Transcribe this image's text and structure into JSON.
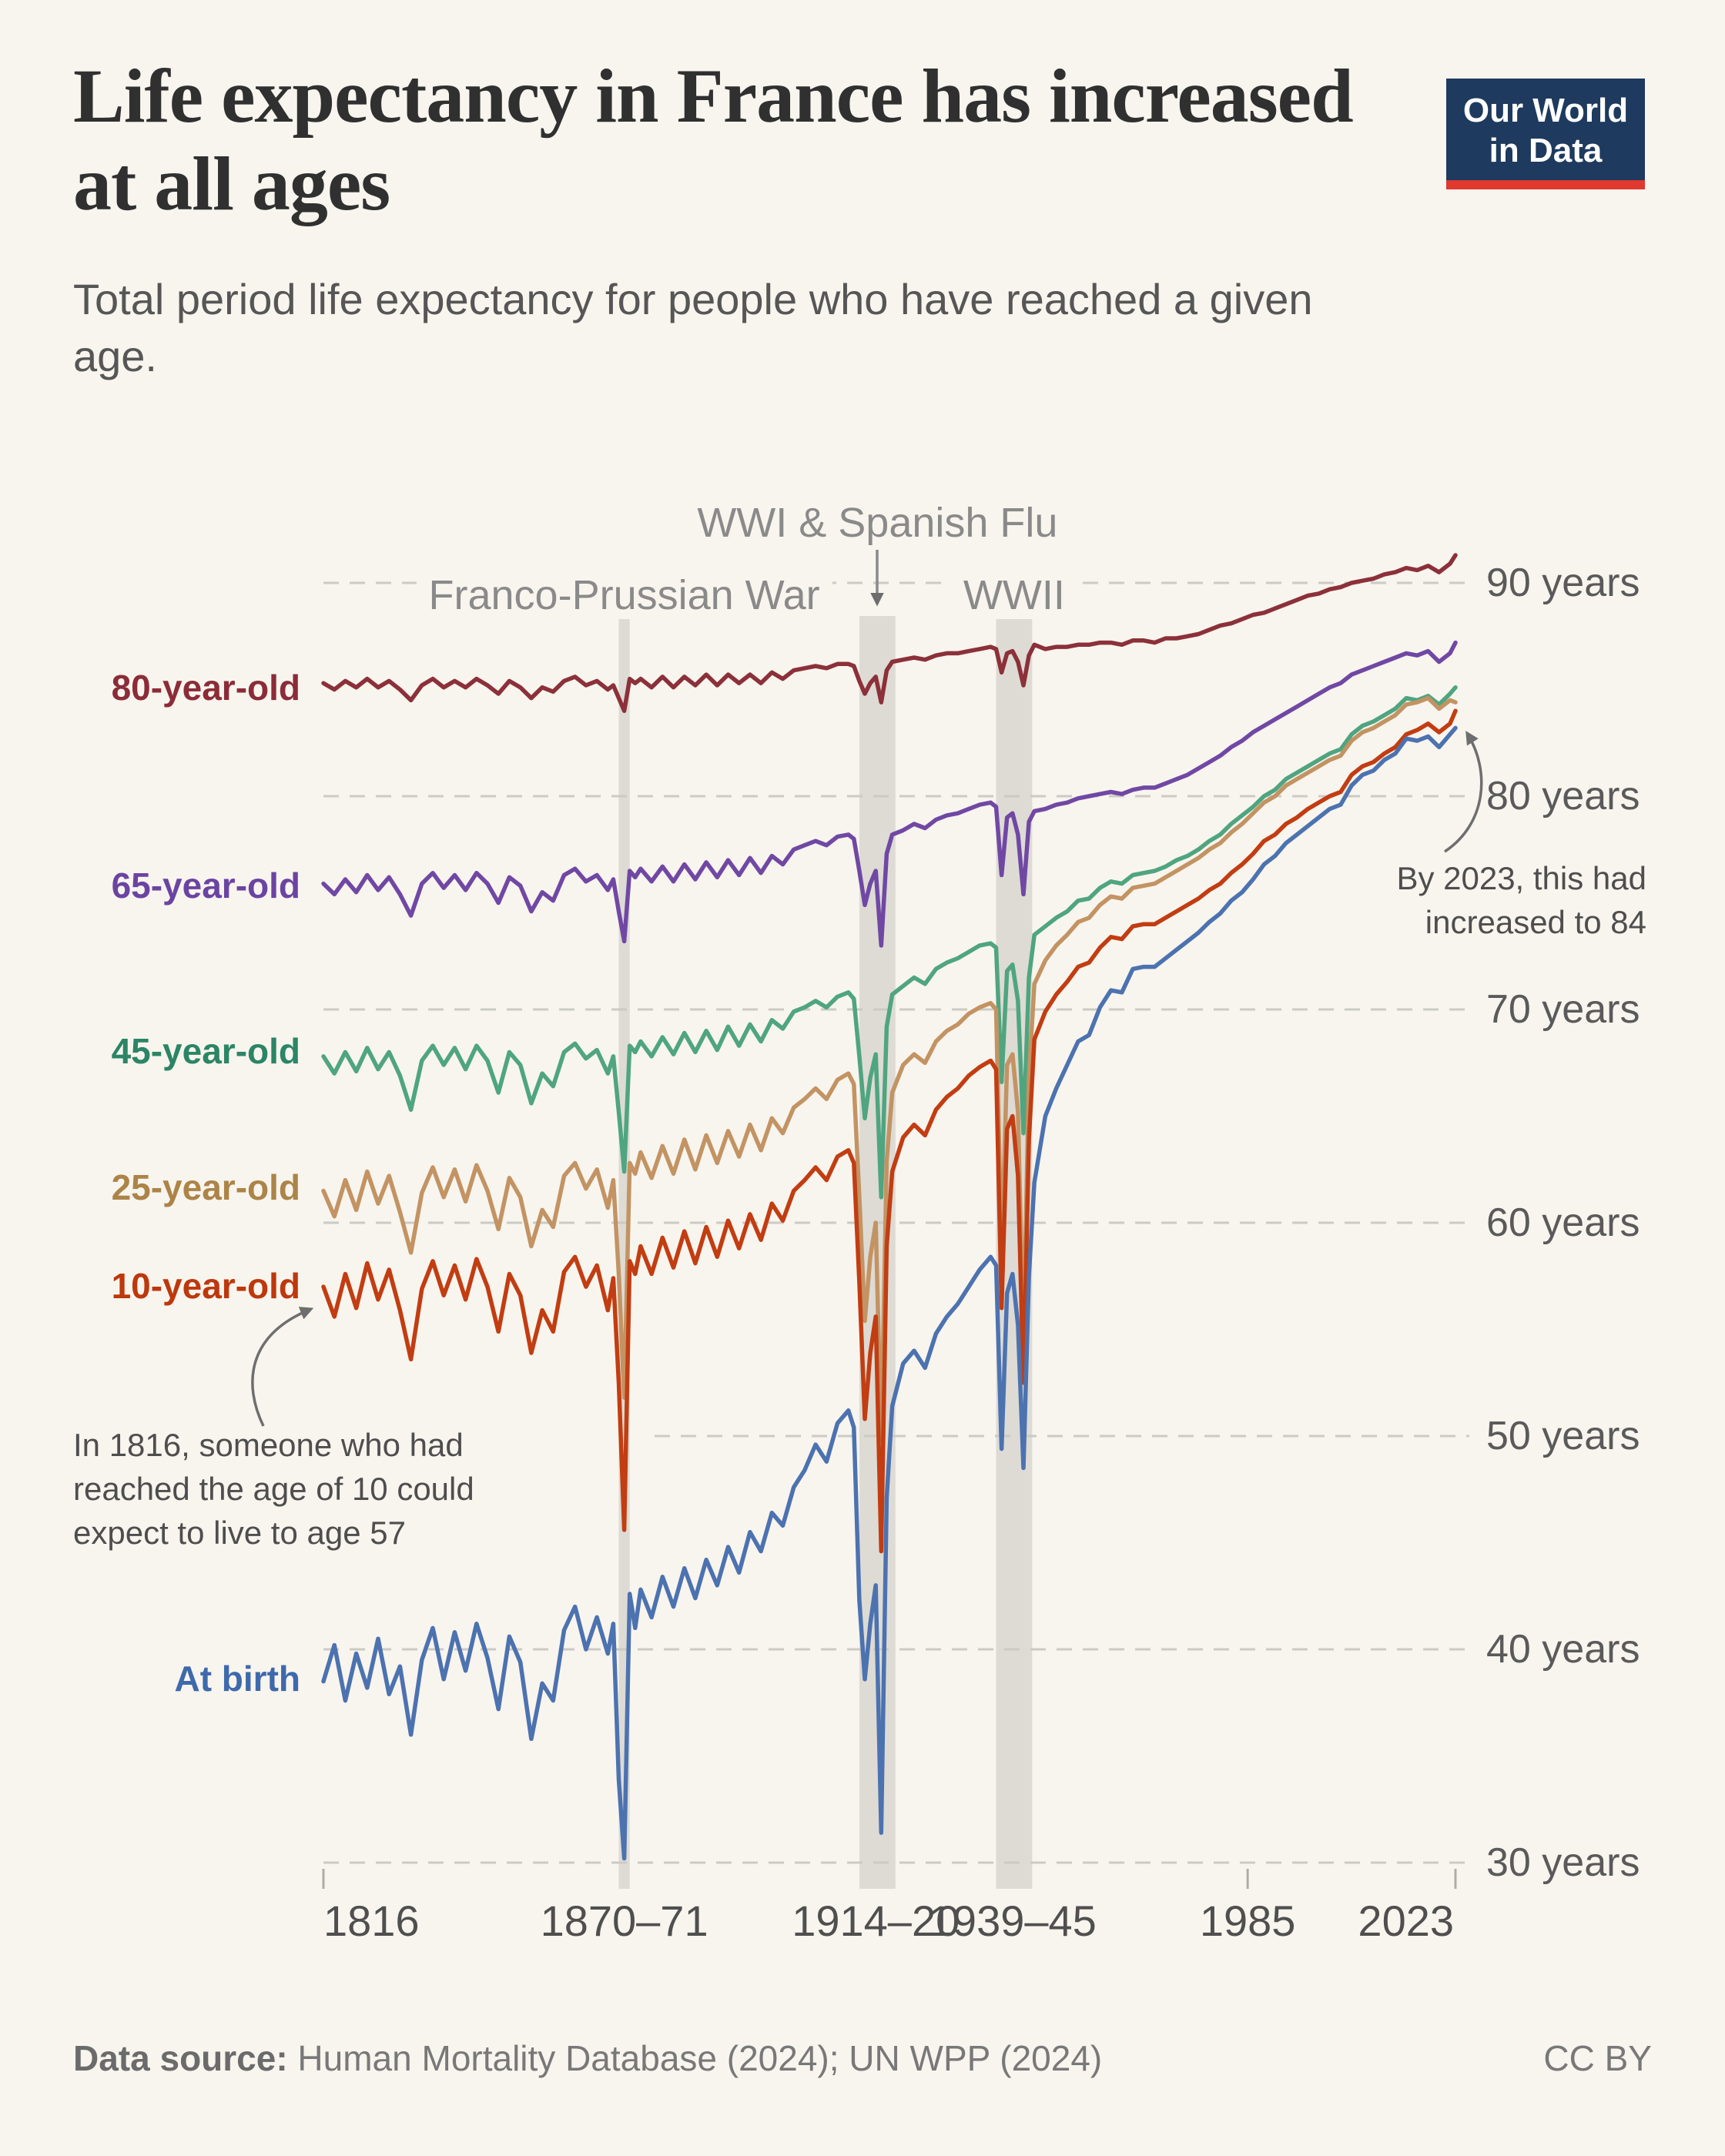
{
  "page": {
    "background": "#F8F5EE"
  },
  "header": {
    "title": "Life expectancy in France has increased at all ages",
    "subtitle": "Total period life expectancy for people who have reached a given age.",
    "logo": {
      "line1": "Our World",
      "line2": "in Data",
      "bg_color": "#1E3A5E",
      "accent_color": "#E0392F"
    }
  },
  "footer": {
    "source_label": "Data source:",
    "source_text": " Human Mortality Database (2024); UN WPP (2024)",
    "license": "CC BY"
  },
  "chart_data": {
    "type": "line",
    "title": "Life expectancy in France has increased at all ages",
    "subtitle": "Total period life expectancy for people who have reached a given age.",
    "grid": "dashed-horizontal",
    "legend_position": "left-inline-labels",
    "x_axis": {
      "min": 1816,
      "max": 2023,
      "ticks": [
        {
          "label": "1816",
          "year": 1816,
          "align": "left",
          "tick_mark": true
        },
        {
          "label": "1870–71",
          "year": 1871,
          "align": "center",
          "tick_mark": false
        },
        {
          "label": "1914–20",
          "year": 1917,
          "align": "center",
          "tick_mark": false
        },
        {
          "label": "1939–45",
          "year": 1942,
          "align": "center",
          "tick_mark": false
        },
        {
          "label": "1985",
          "year": 1985,
          "align": "center",
          "tick_mark": true
        },
        {
          "label": "2023",
          "year": 2023,
          "align": "end",
          "tick_mark": true
        }
      ]
    },
    "y_axis": {
      "min": 30,
      "max": 90,
      "unit": "years",
      "ticks": [
        {
          "value": 90,
          "label": "90 years"
        },
        {
          "value": 80,
          "label": "80 years"
        },
        {
          "value": 70,
          "label": "70 years"
        },
        {
          "value": 60,
          "label": "60 years"
        },
        {
          "value": 50,
          "label": "50 years"
        },
        {
          "value": 40,
          "label": "40 years"
        },
        {
          "value": 30,
          "label": "30 years"
        }
      ]
    },
    "events": [
      {
        "label": "Franco-Prussian War",
        "start": 1870,
        "end": 1872,
        "row": 2,
        "arrow": false
      },
      {
        "label": "WWI & Spanish Flu",
        "start": 1914,
        "end": 1920.6,
        "row": 1,
        "arrow": true
      },
      {
        "label": "WWII",
        "start": 1939,
        "end": 1945.6,
        "row": 2,
        "arrow": false
      }
    ],
    "band_color": "#DDDBD4",
    "years": [
      1816,
      1818,
      1820,
      1822,
      1824,
      1826,
      1828,
      1830,
      1832,
      1834,
      1836,
      1838,
      1840,
      1842,
      1844,
      1846,
      1848,
      1850,
      1852,
      1854,
      1856,
      1858,
      1860,
      1862,
      1864,
      1866,
      1868,
      1869,
      1870,
      1871,
      1872,
      1873,
      1874,
      1876,
      1878,
      1880,
      1882,
      1884,
      1886,
      1888,
      1890,
      1892,
      1894,
      1896,
      1898,
      1900,
      1902,
      1904,
      1906,
      1908,
      1910,
      1912,
      1913,
      1914,
      1915,
      1916,
      1917,
      1918,
      1919,
      1920,
      1922,
      1924,
      1926,
      1928,
      1930,
      1932,
      1934,
      1936,
      1938,
      1939,
      1940,
      1941,
      1942,
      1943,
      1944,
      1945,
      1946,
      1948,
      1950,
      1952,
      1954,
      1956,
      1958,
      1960,
      1962,
      1964,
      1966,
      1968,
      1970,
      1972,
      1974,
      1976,
      1978,
      1980,
      1982,
      1984,
      1986,
      1988,
      1990,
      1992,
      1994,
      1996,
      1998,
      2000,
      2002,
      2004,
      2006,
      2008,
      2010,
      2012,
      2014,
      2016,
      2018,
      2020,
      2022,
      2023
    ],
    "series": [
      {
        "name": "80-year-old",
        "color": "#8C3039",
        "label_color": "#8B2C38",
        "values": [
          85.3,
          85.0,
          85.4,
          85.1,
          85.5,
          85.1,
          85.4,
          85.0,
          84.5,
          85.2,
          85.5,
          85.1,
          85.4,
          85.1,
          85.5,
          85.2,
          84.8,
          85.4,
          85.1,
          84.6,
          85.1,
          84.9,
          85.4,
          85.6,
          85.2,
          85.4,
          85.0,
          85.2,
          84.6,
          84.0,
          85.5,
          85.3,
          85.5,
          85.1,
          85.6,
          85.1,
          85.6,
          85.2,
          85.7,
          85.2,
          85.7,
          85.3,
          85.7,
          85.3,
          85.8,
          85.5,
          85.9,
          86.0,
          86.1,
          86.0,
          86.2,
          86.2,
          86.1,
          85.4,
          84.8,
          85.3,
          85.6,
          84.4,
          85.9,
          86.3,
          86.4,
          86.5,
          86.4,
          86.6,
          86.7,
          86.7,
          86.8,
          86.9,
          87.0,
          86.9,
          85.8,
          86.7,
          86.8,
          86.3,
          85.2,
          86.6,
          87.1,
          86.9,
          87.0,
          87.0,
          87.1,
          87.1,
          87.2,
          87.2,
          87.1,
          87.3,
          87.3,
          87.2,
          87.4,
          87.4,
          87.5,
          87.6,
          87.8,
          88.0,
          88.1,
          88.3,
          88.5,
          88.6,
          88.8,
          89.0,
          89.2,
          89.4,
          89.5,
          89.7,
          89.8,
          90.0,
          90.1,
          90.2,
          90.4,
          90.5,
          90.7,
          90.6,
          90.8,
          90.5,
          90.9,
          91.3
        ]
      },
      {
        "name": "65-year-old",
        "color": "#7048A4",
        "label_color": "#6B44A2",
        "values": [
          75.9,
          75.4,
          76.1,
          75.5,
          76.3,
          75.6,
          76.2,
          75.4,
          74.4,
          75.9,
          76.4,
          75.7,
          76.3,
          75.6,
          76.4,
          75.9,
          75.0,
          76.2,
          75.8,
          74.6,
          75.5,
          75.1,
          76.3,
          76.6,
          76.0,
          76.3,
          75.6,
          76.1,
          74.6,
          73.2,
          76.5,
          76.2,
          76.6,
          76.0,
          76.7,
          76.0,
          76.8,
          76.1,
          76.9,
          76.2,
          77.0,
          76.3,
          77.1,
          76.4,
          77.2,
          76.8,
          77.5,
          77.7,
          77.9,
          77.7,
          78.1,
          78.2,
          78.0,
          76.5,
          74.9,
          75.9,
          76.5,
          73.0,
          77.3,
          78.2,
          78.4,
          78.7,
          78.5,
          78.9,
          79.1,
          79.2,
          79.4,
          79.6,
          79.7,
          79.5,
          76.3,
          79.0,
          79.2,
          78.2,
          75.4,
          78.8,
          79.3,
          79.4,
          79.6,
          79.7,
          79.9,
          80.0,
          80.1,
          80.2,
          80.1,
          80.3,
          80.4,
          80.4,
          80.6,
          80.8,
          81.0,
          81.3,
          81.6,
          81.9,
          82.3,
          82.6,
          83.0,
          83.3,
          83.6,
          83.9,
          84.2,
          84.5,
          84.8,
          85.1,
          85.3,
          85.7,
          85.9,
          86.1,
          86.3,
          86.5,
          86.7,
          86.6,
          86.8,
          86.3,
          86.7,
          87.2
        ]
      },
      {
        "name": "45-year-old",
        "color": "#4FA580",
        "label_color": "#2B8566",
        "values": [
          67.8,
          67.0,
          68.0,
          67.1,
          68.2,
          67.2,
          68.0,
          66.9,
          65.3,
          67.6,
          68.3,
          67.4,
          68.2,
          67.2,
          68.3,
          67.6,
          66.1,
          68.0,
          67.4,
          65.6,
          67.0,
          66.4,
          68.0,
          68.4,
          67.7,
          68.1,
          67.0,
          67.8,
          65.2,
          62.4,
          68.3,
          68.0,
          68.5,
          67.8,
          68.7,
          67.9,
          68.9,
          68.0,
          69.0,
          68.1,
          69.2,
          68.3,
          69.3,
          68.5,
          69.5,
          69.1,
          69.9,
          70.1,
          70.4,
          70.1,
          70.6,
          70.8,
          70.5,
          67.8,
          64.9,
          66.8,
          67.9,
          61.2,
          69.2,
          70.7,
          71.1,
          71.5,
          71.2,
          71.9,
          72.2,
          72.4,
          72.7,
          73.0,
          73.1,
          72.9,
          66.6,
          71.8,
          72.1,
          70.4,
          64.2,
          71.5,
          73.5,
          73.9,
          74.3,
          74.6,
          75.1,
          75.2,
          75.7,
          76.0,
          75.9,
          76.3,
          76.4,
          76.5,
          76.7,
          77.0,
          77.2,
          77.5,
          77.9,
          78.2,
          78.7,
          79.1,
          79.5,
          80.0,
          80.3,
          80.8,
          81.1,
          81.4,
          81.7,
          82.0,
          82.2,
          82.9,
          83.3,
          83.5,
          83.8,
          84.1,
          84.6,
          84.5,
          84.7,
          84.3,
          84.8,
          85.1
        ]
      },
      {
        "name": "25-year-old",
        "color": "#C39363",
        "label_color": "#AC8448",
        "values": [
          61.5,
          60.3,
          62.0,
          60.6,
          62.4,
          60.9,
          62.2,
          60.5,
          58.6,
          61.4,
          62.6,
          61.2,
          62.5,
          61.0,
          62.7,
          61.5,
          59.7,
          62.1,
          61.2,
          58.9,
          60.6,
          59.8,
          62.2,
          62.8,
          61.6,
          62.5,
          60.7,
          62.0,
          57.6,
          51.8,
          62.8,
          62.3,
          63.3,
          62.1,
          63.6,
          62.3,
          63.9,
          62.5,
          64.1,
          62.8,
          64.3,
          63.1,
          64.6,
          63.4,
          64.9,
          64.2,
          65.4,
          65.8,
          66.3,
          65.8,
          66.7,
          67.0,
          66.5,
          61.2,
          55.4,
          58.4,
          60.0,
          49.8,
          62.9,
          66.1,
          67.4,
          67.9,
          67.5,
          68.5,
          69.0,
          69.3,
          69.8,
          70.1,
          70.3,
          70.0,
          58.5,
          67.4,
          67.9,
          65.2,
          54.5,
          66.9,
          71.2,
          72.3,
          73.0,
          73.5,
          74.1,
          74.3,
          74.9,
          75.3,
          75.2,
          75.7,
          75.8,
          75.9,
          76.2,
          76.5,
          76.8,
          77.1,
          77.5,
          77.8,
          78.3,
          78.7,
          79.2,
          79.7,
          80.0,
          80.5,
          80.8,
          81.1,
          81.4,
          81.7,
          81.9,
          82.6,
          83.0,
          83.2,
          83.5,
          83.8,
          84.3,
          84.4,
          84.6,
          84.1,
          84.5,
          84.4
        ]
      },
      {
        "name": "10-year-old",
        "color": "#C23D12",
        "label_color": "#BD380C",
        "values": [
          57.0,
          55.6,
          57.6,
          56.0,
          58.1,
          56.4,
          57.8,
          55.9,
          53.6,
          56.9,
          58.2,
          56.6,
          58.0,
          56.4,
          58.3,
          57.0,
          54.9,
          57.6,
          56.6,
          53.9,
          55.9,
          54.9,
          57.7,
          58.4,
          57.0,
          58.0,
          55.9,
          57.4,
          52.5,
          45.6,
          58.2,
          57.6,
          58.9,
          57.6,
          59.3,
          57.9,
          59.6,
          58.1,
          59.8,
          58.4,
          60.1,
          58.8,
          60.4,
          59.2,
          60.9,
          60.1,
          61.5,
          62.0,
          62.6,
          62.0,
          63.1,
          63.4,
          62.8,
          57.2,
          50.8,
          53.9,
          55.6,
          44.6,
          58.9,
          62.4,
          64.0,
          64.6,
          64.1,
          65.3,
          65.9,
          66.3,
          66.9,
          67.3,
          67.6,
          67.2,
          56.0,
          64.4,
          65.0,
          62.2,
          52.5,
          63.9,
          68.6,
          69.9,
          70.7,
          71.3,
          72.0,
          72.2,
          72.9,
          73.4,
          73.3,
          73.9,
          74.0,
          74.0,
          74.3,
          74.6,
          74.9,
          75.2,
          75.6,
          75.9,
          76.4,
          76.8,
          77.3,
          77.9,
          78.2,
          78.7,
          79.0,
          79.4,
          79.7,
          80.0,
          80.2,
          81.0,
          81.4,
          81.6,
          82.0,
          82.3,
          82.9,
          83.1,
          83.4,
          83.0,
          83.4,
          84.0
        ]
      },
      {
        "name": "At birth",
        "color": "#4C72B0",
        "label_color": "#3E69AC",
        "values": [
          38.5,
          40.2,
          37.6,
          39.8,
          38.2,
          40.5,
          37.9,
          39.2,
          36.0,
          39.5,
          41.0,
          38.6,
          40.8,
          39.0,
          41.2,
          39.6,
          37.2,
          40.6,
          39.4,
          35.8,
          38.4,
          37.6,
          40.9,
          42.0,
          40.0,
          41.5,
          39.8,
          41.2,
          33.9,
          30.2,
          42.6,
          41.0,
          42.8,
          41.5,
          43.4,
          42.0,
          43.8,
          42.4,
          44.2,
          43.0,
          44.8,
          43.6,
          45.5,
          44.6,
          46.4,
          45.8,
          47.6,
          48.4,
          49.6,
          48.8,
          50.6,
          51.2,
          50.4,
          42.3,
          38.6,
          41.2,
          43.0,
          31.4,
          47.1,
          51.4,
          53.4,
          54.0,
          53.2,
          54.8,
          55.6,
          56.2,
          57.0,
          57.8,
          58.4,
          58.0,
          49.4,
          56.7,
          57.6,
          55.2,
          48.5,
          57.5,
          61.9,
          65.0,
          66.3,
          67.4,
          68.5,
          68.8,
          70.1,
          70.9,
          70.8,
          71.9,
          72.0,
          72.0,
          72.4,
          72.8,
          73.2,
          73.6,
          74.1,
          74.5,
          75.1,
          75.5,
          76.1,
          76.8,
          77.2,
          77.8,
          78.2,
          78.6,
          79.0,
          79.4,
          79.6,
          80.5,
          81.0,
          81.2,
          81.7,
          82.0,
          82.7,
          82.6,
          82.8,
          82.3,
          82.9,
          83.2
        ]
      }
    ],
    "annotations": [
      {
        "id": "annotation-1816",
        "lines": [
          "In 1816, someone who had",
          "reached the age of 10 could",
          "expect to live to age 57"
        ]
      },
      {
        "id": "annotation-2023",
        "lines": [
          "By 2023, this had",
          "increased to 84"
        ]
      }
    ]
  }
}
